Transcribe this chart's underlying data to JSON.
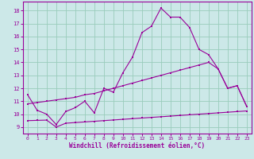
{
  "xlabel": "Windchill (Refroidissement éolien,°C)",
  "bg_color": "#cce8e8",
  "line_color": "#990099",
  "grid_color": "#99ccbb",
  "xlim": [
    -0.5,
    23.5
  ],
  "ylim": [
    8.5,
    18.7
  ],
  "yticks": [
    9,
    10,
    11,
    12,
    13,
    14,
    15,
    16,
    17,
    18
  ],
  "xticks": [
    0,
    1,
    2,
    3,
    4,
    5,
    6,
    7,
    8,
    9,
    10,
    11,
    12,
    13,
    14,
    15,
    16,
    17,
    18,
    19,
    20,
    21,
    22,
    23
  ],
  "line1_x": [
    0,
    1,
    2,
    3,
    4,
    5,
    6,
    7,
    8,
    9,
    10,
    11,
    12,
    13,
    14,
    15,
    16,
    17,
    18,
    19,
    20,
    21,
    22,
    23
  ],
  "line1_y": [
    11.5,
    10.3,
    10.0,
    9.2,
    10.2,
    10.5,
    11.0,
    10.1,
    12.0,
    11.7,
    13.2,
    14.4,
    16.3,
    16.8,
    18.2,
    17.5,
    17.5,
    16.7,
    15.0,
    14.6,
    13.5,
    12.0,
    12.2,
    10.6
  ],
  "line2_x": [
    0,
    1,
    2,
    3,
    4,
    5,
    6,
    7,
    8,
    9,
    10,
    11,
    12,
    13,
    14,
    15,
    16,
    17,
    18,
    19,
    20,
    21,
    22,
    23
  ],
  "line2_y": [
    10.8,
    10.9,
    11.0,
    11.1,
    11.2,
    11.3,
    11.5,
    11.6,
    11.8,
    12.0,
    12.2,
    12.4,
    12.6,
    12.8,
    13.0,
    13.2,
    13.4,
    13.6,
    13.8,
    14.0,
    13.5,
    12.0,
    12.2,
    10.6
  ],
  "line3_x": [
    0,
    1,
    2,
    3,
    4,
    5,
    6,
    7,
    8,
    9,
    10,
    11,
    12,
    13,
    14,
    15,
    16,
    17,
    18,
    19,
    20,
    21,
    22,
    23
  ],
  "line3_y": [
    9.5,
    9.52,
    9.54,
    9.0,
    9.3,
    9.35,
    9.4,
    9.45,
    9.5,
    9.55,
    9.6,
    9.65,
    9.7,
    9.75,
    9.8,
    9.85,
    9.9,
    9.95,
    10.0,
    10.05,
    10.1,
    10.15,
    10.2,
    10.25
  ]
}
